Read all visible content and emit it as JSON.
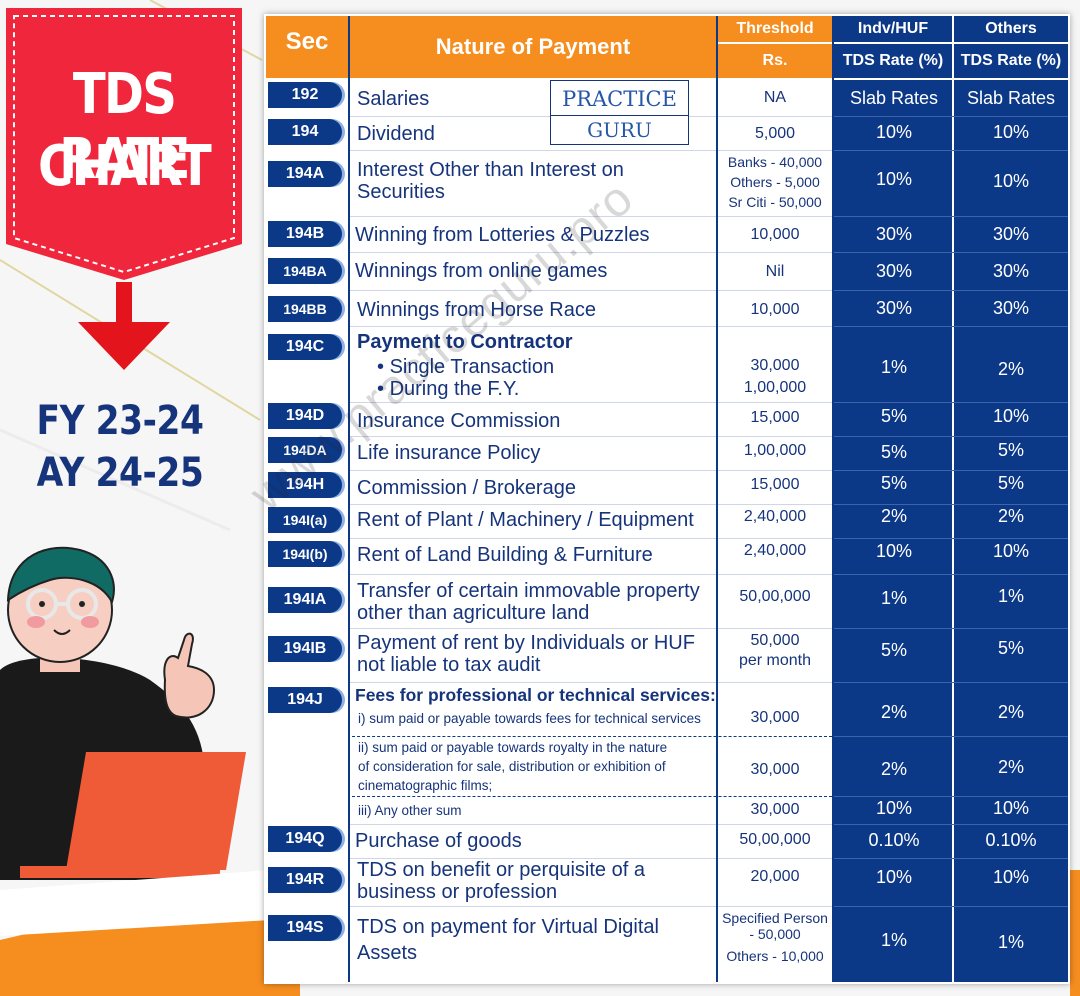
{
  "title": {
    "line1": "TDS RATE",
    "line2": "CHART"
  },
  "fy": {
    "line1": "FY 23-24",
    "line2": "AY 24-25"
  },
  "logo": {
    "line1": "PRACTICE",
    "line2": "GURU"
  },
  "watermark": "www.practiceguru.pro",
  "header": {
    "sec": "Sec",
    "nature": "Nature of Payment",
    "threshold_top": "Threshold",
    "threshold_bottom": "Rs.",
    "indv_top": "Indv/HUF",
    "indv_bottom": "TDS Rate (%)",
    "others_top": "Others",
    "others_bottom": "TDS Rate (%)"
  },
  "rows": [
    {
      "sec": "192",
      "nature": "Salaries",
      "threshold": "NA",
      "indv": "Slab Rates",
      "others": "Slab Rates"
    },
    {
      "sec": "194",
      "nature": "Dividend",
      "threshold": "5,000",
      "indv": "10%",
      "others": "10%"
    },
    {
      "sec": "194A",
      "nature_l1": "Interest Other than Interest on",
      "nature_l2": "Securities",
      "threshold_l1": "Banks - 40,000",
      "threshold_l2": "Others - 5,000",
      "threshold_l3": "Sr Citi - 50,000",
      "indv": "10%",
      "others": "10%"
    },
    {
      "sec": "194B",
      "nature": "Winning from Lotteries & Puzzles",
      "threshold": "10,000",
      "indv": "30%",
      "others": "30%"
    },
    {
      "sec": "194BA",
      "nature": "Winnings from online games",
      "threshold": "Nil",
      "indv": "30%",
      "others": "30%"
    },
    {
      "sec": "194BB",
      "nature": "Winnings from Horse Race",
      "threshold": "10,000",
      "indv": "30%",
      "others": "30%"
    },
    {
      "sec": "194C",
      "nature_head": "Payment to Contractor",
      "bullet1": "Single Transaction",
      "bullet2": "During the F.Y.",
      "threshold_l1": "30,000",
      "threshold_l2": "1,00,000",
      "indv": "1%",
      "others": "2%"
    },
    {
      "sec": "194D",
      "nature": "Insurance Commission",
      "threshold": "15,000",
      "indv": "5%",
      "others": "10%"
    },
    {
      "sec": "194DA",
      "nature": "Life insurance Policy",
      "threshold": "1,00,000",
      "indv": "5%",
      "others": "5%"
    },
    {
      "sec": "194H",
      "nature": "Commission / Brokerage",
      "threshold": "15,000",
      "indv": "5%",
      "others": "5%"
    },
    {
      "sec": "194I(a)",
      "nature": "Rent of Plant / Machinery / Equipment",
      "threshold": "2,40,000",
      "indv": "2%",
      "others": "2%"
    },
    {
      "sec": "194I(b)",
      "nature": "Rent of Land Building & Furniture",
      "threshold": "2,40,000",
      "indv": "10%",
      "others": "10%"
    },
    {
      "sec": "194IA",
      "nature_l1": "Transfer of certain immovable property",
      "nature_l2": "other than agriculture land",
      "threshold": "50,00,000",
      "indv": "1%",
      "others": "1%"
    },
    {
      "sec": "194IB",
      "nature_l1": "Payment of rent by Individuals or HUF",
      "nature_l2": "not liable to tax audit",
      "threshold_l1": "50,000",
      "threshold_l2": "per month",
      "indv": "5%",
      "others": "5%"
    },
    {
      "sec": "194J",
      "nature_head": "Fees for professional or technical services:",
      "sub1": "i) sum paid or payable towards fees for technical services",
      "sub1_threshold": "30,000",
      "sub1_indv": "2%",
      "sub1_others": "2%",
      "sub2_l1": "ii) sum paid or payable towards royalty in the nature",
      "sub2_l2": "of consideration for sale, distribution or exhibition of",
      "sub2_l3": "cinematographic films;",
      "sub2_threshold": "30,000",
      "sub2_indv": "2%",
      "sub2_others": "2%",
      "sub3": "iii) Any other sum",
      "sub3_threshold": "30,000",
      "sub3_indv": "10%",
      "sub3_others": "10%"
    },
    {
      "sec": "194Q",
      "nature": "Purchase of goods",
      "threshold": "50,00,000",
      "indv": "0.10%",
      "others": "0.10%"
    },
    {
      "sec": "194R",
      "nature_l1": "TDS on benefit or perquisite of a",
      "nature_l2": "business or profession",
      "threshold": "20,000",
      "indv": "10%",
      "others": "10%"
    },
    {
      "sec": "194S",
      "nature_l1": "TDS on payment for Virtual Digital",
      "nature_l2": "Assets",
      "threshold_l1": "Specified Person",
      "threshold_l2": "- 50,000",
      "threshold_l3": "Others - 10,000",
      "indv": "1%",
      "others": "1%"
    }
  ],
  "colors": {
    "navy": "#0c3888",
    "orange": "#f58d1f",
    "red": "#f0263c",
    "text": "#16347b"
  }
}
